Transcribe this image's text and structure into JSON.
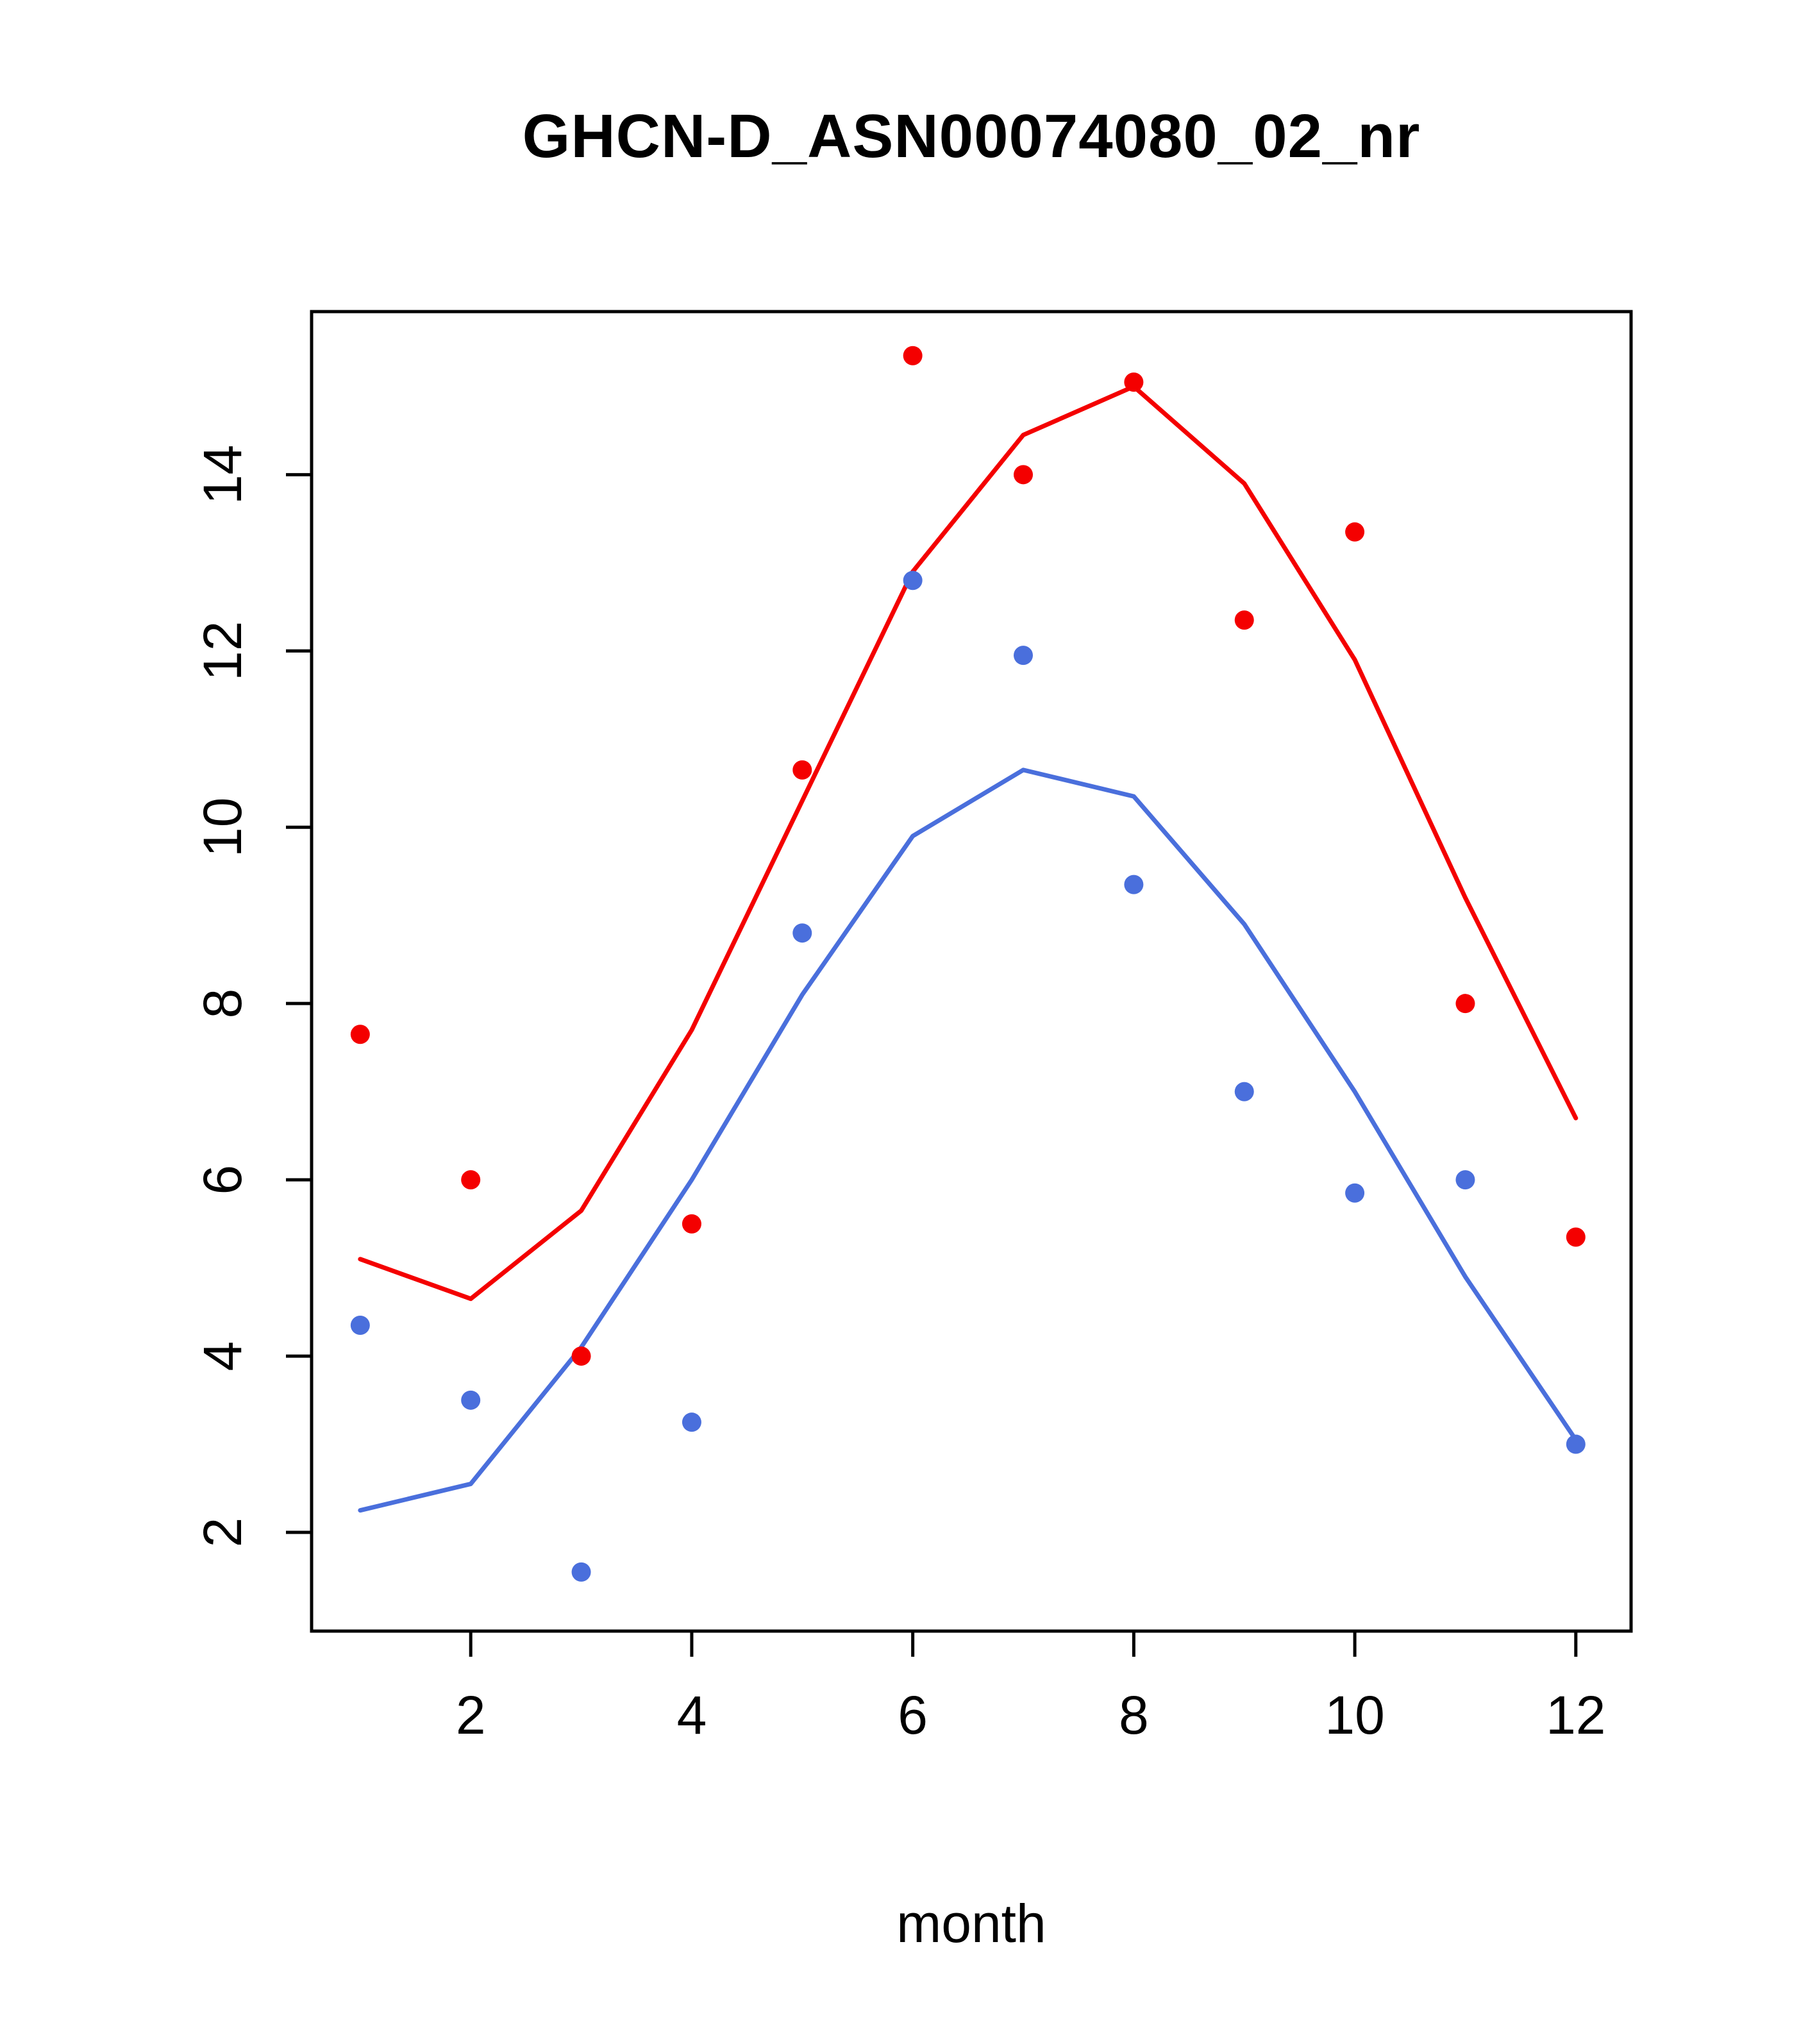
{
  "title": "GHCN-D_ASN00074080_02_nr",
  "chart_data": {
    "type": "scatter",
    "title": "GHCN-D_ASN00074080_02_nr",
    "xlabel": "month",
    "ylabel": "",
    "x": [
      1,
      2,
      3,
      4,
      5,
      6,
      7,
      8,
      9,
      10,
      11,
      12
    ],
    "xlim": [
      0.56,
      12.5
    ],
    "ylim": [
      0.88,
      15.85
    ],
    "x_ticks": [
      2,
      4,
      6,
      8,
      10,
      12
    ],
    "y_ticks": [
      2,
      4,
      6,
      8,
      10,
      12,
      14
    ],
    "grid": false,
    "legend": "none",
    "colors": {
      "red": "#f40000",
      "blue": "#4a6fdc",
      "axis": "#000000"
    },
    "series": [
      {
        "name": "red-points",
        "type": "points",
        "color": "red",
        "values": [
          7.65,
          6.0,
          4.0,
          5.5,
          10.65,
          15.35,
          14.0,
          15.05,
          12.35,
          13.35,
          8.0,
          5.35
        ]
      },
      {
        "name": "red-line",
        "type": "line",
        "color": "red",
        "values": [
          5.1,
          4.65,
          5.65,
          7.7,
          10.3,
          12.9,
          14.45,
          15.0,
          13.9,
          11.9,
          9.2,
          6.7
        ]
      },
      {
        "name": "blue-points",
        "type": "points",
        "color": "blue",
        "values": [
          4.35,
          3.5,
          1.55,
          3.25,
          8.8,
          12.8,
          11.95,
          9.35,
          7.0,
          5.85,
          6.0,
          3.0
        ]
      },
      {
        "name": "blue-line",
        "type": "line",
        "color": "blue",
        "values": [
          2.25,
          2.55,
          4.1,
          6.0,
          8.1,
          9.9,
          10.65,
          10.35,
          8.9,
          7.0,
          4.9,
          3.05
        ]
      }
    ]
  }
}
